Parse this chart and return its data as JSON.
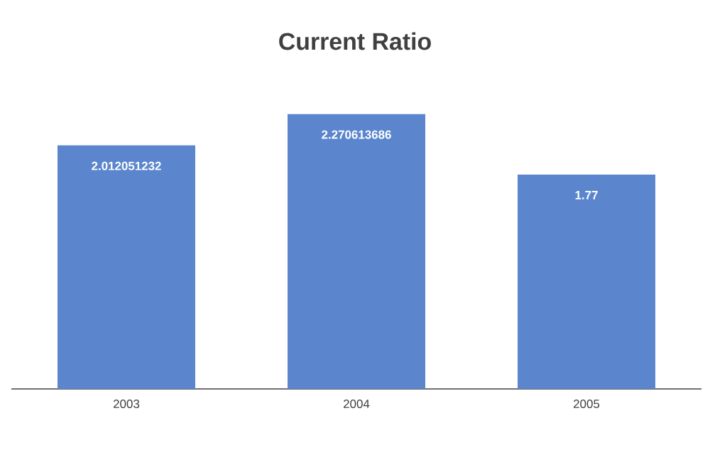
{
  "chart_data": {
    "type": "bar",
    "title": "Current Ratio",
    "categories": [
      "2003",
      "2004",
      "2005"
    ],
    "values": [
      2.012051232,
      2.270613686,
      1.77
    ],
    "color": "#5b86cd",
    "data_labels": true
  }
}
